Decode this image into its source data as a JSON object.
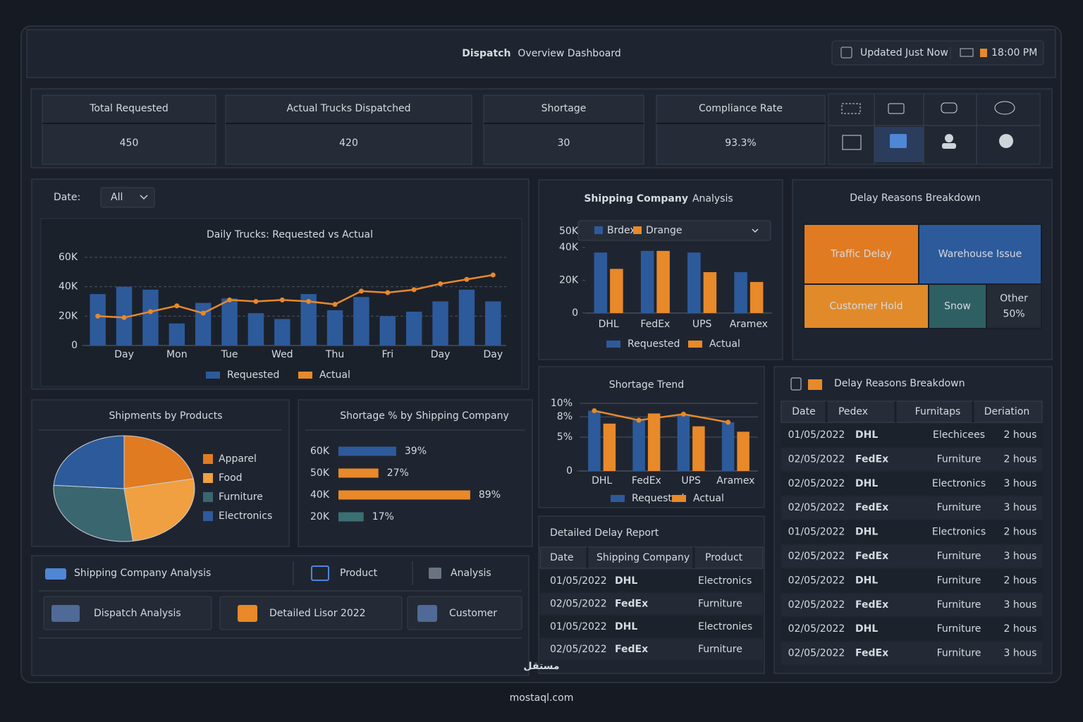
{
  "header": {
    "title_strong": "Dispatch",
    "title": "Overview Dashboard",
    "status": "Updated Just Now",
    "time": "18:00 PM"
  },
  "kpis": [
    {
      "label": "Total Requested",
      "value": 450,
      "color": "#5b8fd6"
    },
    {
      "label": "Actual Trucks Dispatched",
      "value": 420,
      "color": "#d6dae0"
    },
    {
      "label": "Shortage",
      "value": 30,
      "color": "#f0a030"
    },
    {
      "label": "Compliance Rate",
      "value": "93.3%",
      "color": "#c8ccd2"
    }
  ],
  "filter": {
    "label": "Date:",
    "value": "All"
  },
  "chart_data": [
    {
      "type": "combo",
      "title": "Daily Trucks: Requested vs Actual",
      "categories": [
        null,
        "Day",
        null,
        "Mon",
        null,
        "Tue",
        null,
        "Wed",
        null,
        "Thu",
        null,
        "Fri",
        null,
        "Day",
        null,
        "Day"
      ],
      "series": [
        {
          "name": "Requested",
          "kind": "bar",
          "color": "#2d5a9a",
          "values": [
            35000,
            40000,
            38000,
            15000,
            29000,
            32000,
            22000,
            18000,
            35000,
            24000,
            33000,
            20000,
            23000,
            30000,
            38000,
            30000
          ]
        },
        {
          "name": "Actual",
          "kind": "line",
          "color": "#e8892a",
          "values": [
            20000,
            19000,
            23000,
            27000,
            22000,
            31000,
            30000,
            31000,
            30000,
            28000,
            37000,
            36000,
            38000,
            42000,
            45000,
            48000
          ]
        }
      ],
      "ylim": [
        0,
        60000
      ],
      "yticks": [
        0,
        {
          "value": 20000,
          "label": "20K"
        },
        {
          "value": 40000,
          "label": "40K"
        },
        {
          "value": 60000,
          "label": "60K"
        }
      ],
      "grid": true
    },
    {
      "type": "grouped_bar",
      "title_strong": "Shipping Company",
      "title": "Analysis",
      "filter_labels": [
        "Brdex",
        "Drange"
      ],
      "categories": [
        "DHL",
        "FedEx",
        "UPS",
        "Aramex"
      ],
      "series": [
        {
          "name": "Requested",
          "color": "#2d5a9a",
          "values": [
            37000,
            38000,
            37000,
            25000
          ]
        },
        {
          "name": "Actual",
          "color": "#e8892a",
          "values": [
            27000,
            38000,
            25000,
            19000
          ]
        }
      ],
      "ylim": [
        0,
        55000
      ],
      "yticks": [
        0,
        {
          "value": 20000,
          "label": "20K"
        },
        {
          "value": 40000,
          "label": "40K"
        },
        {
          "value": 50000,
          "label": "50K"
        }
      ],
      "grid": false
    },
    {
      "type": "pie",
      "title": "Shipments by Products",
      "categories": [
        "Apparel",
        "Food",
        "Furniture",
        "Electronics"
      ],
      "values": [
        22,
        26,
        28,
        24
      ],
      "colors": [
        "#e07b22",
        "#f0a040",
        "#3a6670",
        "#2d5a9a"
      ]
    },
    {
      "type": "hbar",
      "title": "Shortage % by Shipping Company",
      "categories": [
        "60K",
        "50K",
        "40K",
        "20K"
      ],
      "values": [
        39,
        27,
        89,
        17
      ],
      "value_labels": [
        "39%",
        "27%",
        "89%",
        "17%"
      ],
      "colors": [
        "#2d5a9a",
        "#e8892a",
        "#e8892a",
        "#3b6f73"
      ],
      "xlim": [
        0,
        100
      ]
    },
    {
      "type": "grouped_bar",
      "title": "Shortage Trend",
      "categories": [
        "DHL",
        "FedEx",
        "UPS",
        "Aramex"
      ],
      "series": [
        {
          "name": "Requested",
          "color": "#2d5a9a",
          "values": [
            8.9,
            7.5,
            8.4,
            7.2
          ]
        },
        {
          "name": "Actual",
          "color": "#e8892a",
          "values": [
            7.0,
            8.5,
            6.6,
            5.8
          ]
        }
      ],
      "ylim": [
        0,
        10.5
      ],
      "yticks": [
        0,
        {
          "value": 5,
          "label": "5%"
        },
        {
          "value": 8,
          "label": "8%"
        },
        {
          "value": 10,
          "label": "10%"
        }
      ],
      "grid": true,
      "trend_line": true
    }
  ],
  "delay_breakdown": {
    "title": "Delay Reasons Breakdown",
    "tiles": [
      "Traffic Delay",
      "Warehouse Issue",
      "Customer Hold",
      "Snow",
      "Other"
    ],
    "other_share": "50%"
  },
  "delay_report": {
    "title": "Detailed Delay Report",
    "columns": [
      "Date",
      "Shipping Company",
      "Product"
    ],
    "rows": [
      [
        "01/05/2022",
        "DHL",
        "Electronics"
      ],
      [
        "02/05/2022",
        "FedEx",
        "Furniture"
      ],
      [
        "01/05/2022",
        "DHL",
        "Electronies"
      ],
      [
        "02/05/2022",
        "FedEx",
        "Furniture"
      ]
    ]
  },
  "delay_table": {
    "title": "Delay Reasons Breakdown",
    "columns": [
      "Date",
      "Pedex",
      "Furnitaps",
      "Deriation"
    ],
    "rows": [
      [
        "01/05/2022",
        "DHL",
        "Elechicees",
        "2 hous"
      ],
      [
        "02/05/2022",
        "FedEx",
        "Furniture",
        "2 hous"
      ],
      [
        "02/05/2022",
        "DHL",
        "Electronics",
        "3 hous"
      ],
      [
        "02/05/2022",
        "FedEx",
        "Furniture",
        "3 hous"
      ],
      [
        "01/05/2022",
        "DHL",
        "Electronics",
        "2 hous"
      ],
      [
        "02/05/2022",
        "FedEx",
        "Furniture",
        "3 hous"
      ],
      [
        "02/05/2022",
        "DHL",
        "Furniture",
        "2 hous"
      ],
      [
        "02/05/2022",
        "FedEx",
        "Furniture",
        "3 hous"
      ],
      [
        "02/05/2022",
        "DHL",
        "Furniture",
        "2 hous"
      ],
      [
        "02/05/2022",
        "FedEx",
        "Furniture",
        "3 hous"
      ]
    ]
  },
  "nav": {
    "tabs": [
      "Shipping Company Analysis",
      "Product",
      "Analysis"
    ],
    "buttons": [
      "Dispatch Analysis",
      "Detailed Lisor 2022",
      "Customer"
    ]
  },
  "watermark": {
    "arabic": "مستقل",
    "site": "mostaql.com"
  }
}
